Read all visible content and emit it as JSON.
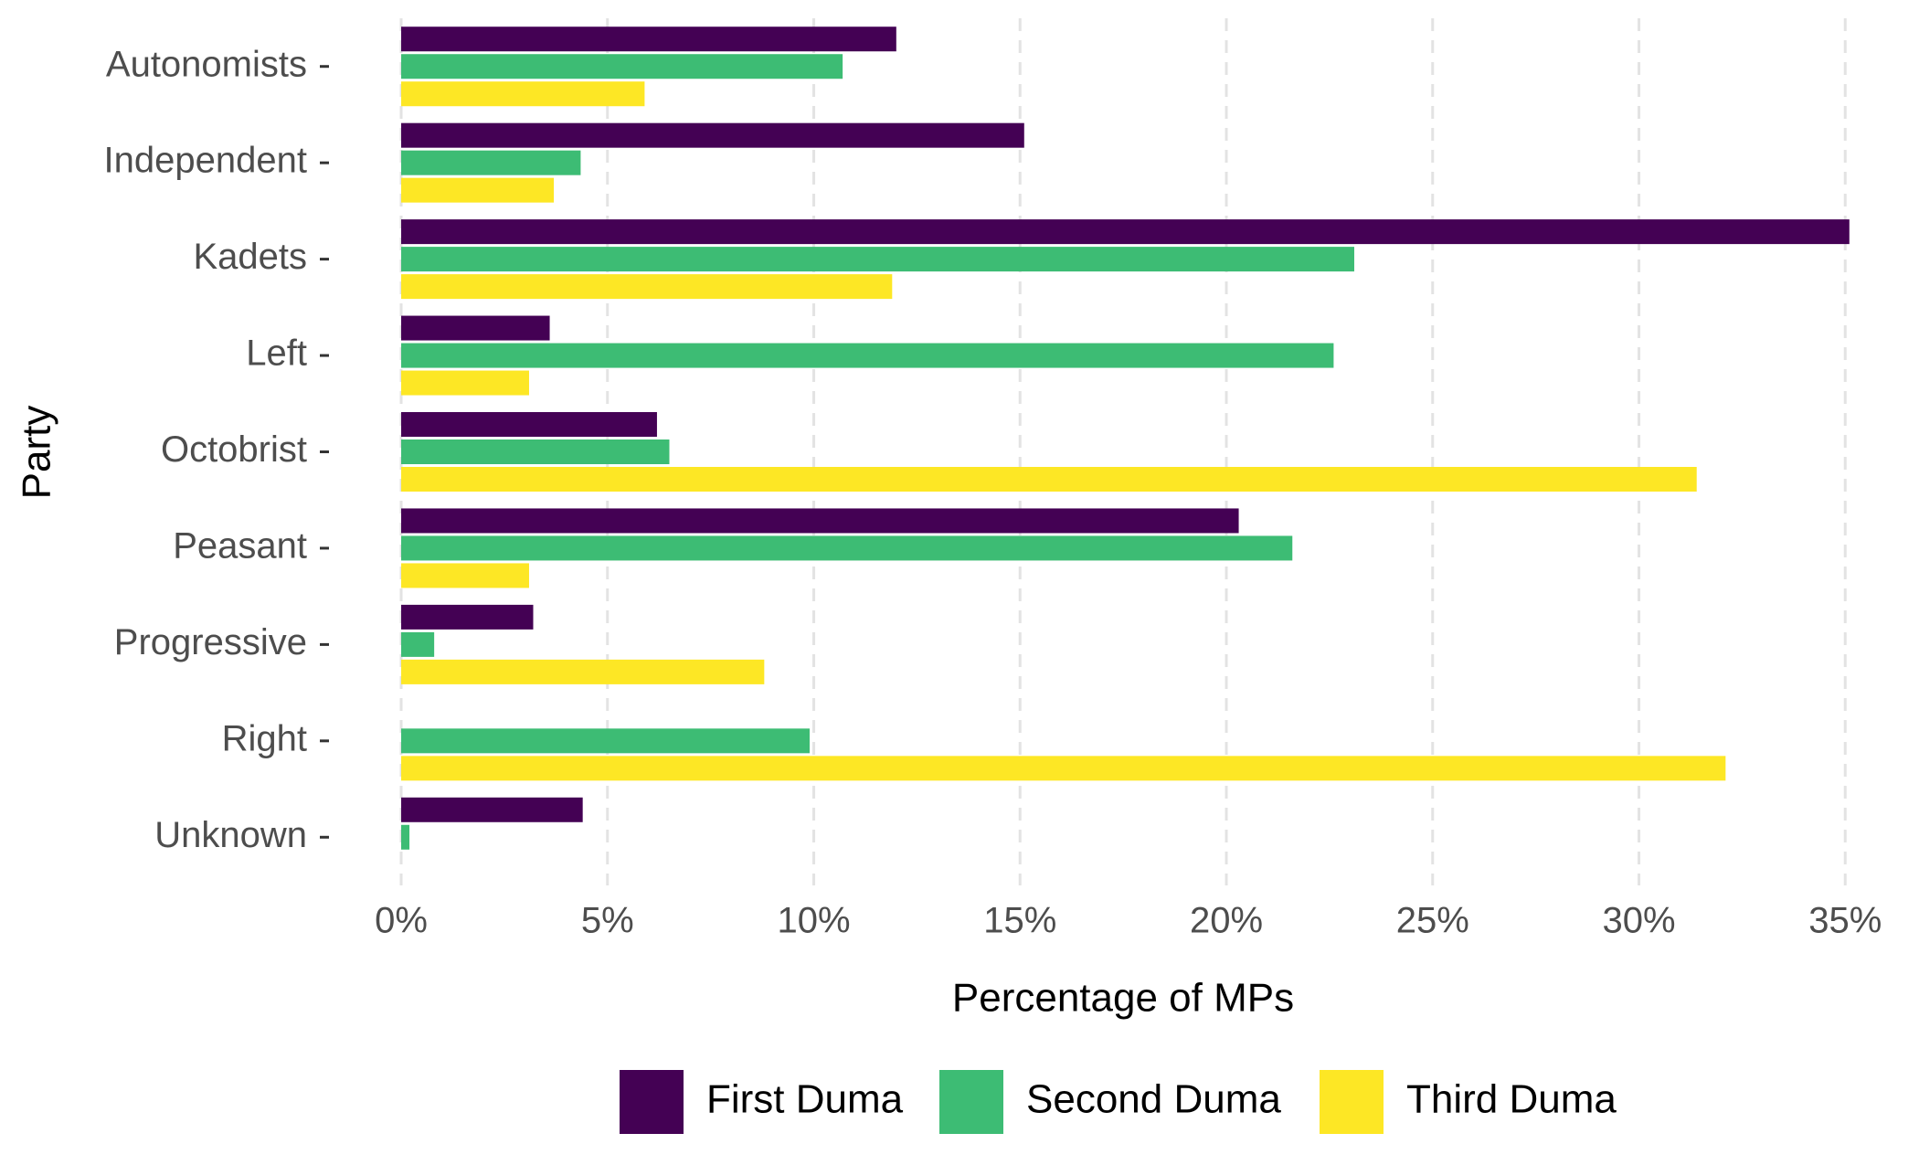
{
  "chart_data": {
    "type": "bar",
    "orientation": "horizontal",
    "x_label": "Percentage of MPs",
    "y_label": "Party",
    "categories": [
      "Autonomists",
      "Independent",
      "Kadets",
      "Left",
      "Octobrist",
      "Peasant",
      "Progressive",
      "Right",
      "Unknown"
    ],
    "series": [
      {
        "name": "First Duma",
        "color": "#440154",
        "values": [
          12.0,
          15.1,
          35.1,
          3.6,
          6.2,
          20.3,
          3.2,
          null,
          4.4
        ]
      },
      {
        "name": "Second Duma",
        "color": "#3dbc74",
        "values": [
          10.7,
          4.35,
          23.1,
          22.6,
          6.5,
          21.6,
          0.8,
          9.9,
          0.2
        ]
      },
      {
        "name": "Third Duma",
        "color": "#fde725",
        "values": [
          5.9,
          3.7,
          11.9,
          3.1,
          31.4,
          3.1,
          8.8,
          32.1,
          null
        ]
      }
    ],
    "xlim": [
      -1.75,
      36.5
    ],
    "xticks": [
      {
        "value": 0,
        "label": "0%"
      },
      {
        "value": 5,
        "label": "5%"
      },
      {
        "value": 10,
        "label": "10%"
      },
      {
        "value": 15,
        "label": "15%"
      },
      {
        "value": 20,
        "label": "20%"
      },
      {
        "value": 25,
        "label": "25%"
      },
      {
        "value": 30,
        "label": "30%"
      },
      {
        "value": 35,
        "label": "35%"
      }
    ],
    "grid": true,
    "legend": "bottom"
  }
}
